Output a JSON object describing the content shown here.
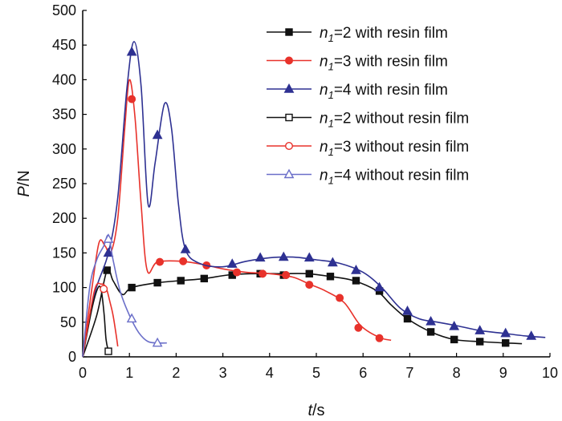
{
  "chart_data": {
    "type": "line",
    "xlabel": {
      "var": "t",
      "unit": "/s"
    },
    "ylabel": {
      "var": "P",
      "unit": "/N"
    },
    "xlim": [
      0,
      10
    ],
    "ylim": [
      0,
      500
    ],
    "xticks": [
      "0",
      "1",
      "2",
      "3",
      "4",
      "5",
      "6",
      "7",
      "8",
      "9",
      "10"
    ],
    "yticks": [
      "0",
      "50",
      "100",
      "150",
      "200",
      "250",
      "300",
      "350",
      "400",
      "450",
      "500"
    ],
    "grid": false,
    "legend_position": "top-right",
    "series": [
      {
        "name": "=2 with resin film",
        "subscript_label": {
          "var": "n",
          "sub": "1",
          "rest": "=2 with resin film"
        },
        "color": "#111111",
        "marker": "square",
        "filled": true,
        "points": [
          [
            0,
            0
          ],
          [
            0.3,
            60
          ],
          [
            0.52,
            125
          ],
          [
            0.65,
            110
          ],
          [
            0.85,
            90
          ],
          [
            1.05,
            100
          ],
          [
            1.6,
            107
          ],
          [
            2.1,
            110
          ],
          [
            2.6,
            113
          ],
          [
            3.1,
            118
          ],
          [
            3.6,
            120
          ],
          [
            4.2,
            120
          ],
          [
            4.8,
            120
          ],
          [
            5.3,
            116
          ],
          [
            5.8,
            110
          ],
          [
            6.3,
            95
          ],
          [
            6.6,
            75
          ],
          [
            6.95,
            55
          ],
          [
            7.45,
            36
          ],
          [
            7.95,
            25
          ],
          [
            8.5,
            22
          ],
          [
            9.05,
            20
          ],
          [
            9.4,
            19
          ]
        ],
        "markers": [
          [
            0.52,
            125
          ],
          [
            1.05,
            100
          ],
          [
            1.6,
            107
          ],
          [
            2.1,
            110
          ],
          [
            2.6,
            113
          ],
          [
            3.2,
            118
          ],
          [
            3.8,
            120
          ],
          [
            4.3,
            118
          ],
          [
            4.85,
            120
          ],
          [
            5.3,
            116
          ],
          [
            5.85,
            110
          ],
          [
            6.35,
            95
          ],
          [
            6.95,
            55
          ],
          [
            7.45,
            36
          ],
          [
            7.95,
            25
          ],
          [
            8.5,
            22
          ],
          [
            9.05,
            20
          ]
        ]
      },
      {
        "name": "=3 with resin film",
        "subscript_label": {
          "var": "n",
          "sub": "1",
          "rest": "=3 with resin film"
        },
        "color": "#e8322b",
        "marker": "circle",
        "filled": true,
        "points": [
          [
            0,
            0
          ],
          [
            0.2,
            100
          ],
          [
            0.35,
            165
          ],
          [
            0.48,
            160
          ],
          [
            0.6,
            150
          ],
          [
            0.75,
            200
          ],
          [
            0.9,
            330
          ],
          [
            1.0,
            400
          ],
          [
            1.12,
            345
          ],
          [
            1.25,
            220
          ],
          [
            1.38,
            125
          ],
          [
            1.6,
            137
          ],
          [
            2.1,
            138
          ],
          [
            2.6,
            133
          ],
          [
            3.0,
            127
          ],
          [
            3.5,
            122
          ],
          [
            4.0,
            120
          ],
          [
            4.5,
            115
          ],
          [
            4.85,
            105
          ],
          [
            5.2,
            95
          ],
          [
            5.6,
            78
          ],
          [
            5.95,
            45
          ],
          [
            6.35,
            28
          ],
          [
            6.6,
            24
          ]
        ],
        "markers": [
          [
            1.05,
            372
          ],
          [
            1.65,
            137
          ],
          [
            2.15,
            138
          ],
          [
            2.65,
            132
          ],
          [
            3.3,
            122
          ],
          [
            3.85,
            120
          ],
          [
            4.35,
            118
          ],
          [
            4.85,
            104
          ],
          [
            5.5,
            85
          ],
          [
            5.9,
            42
          ],
          [
            6.35,
            27
          ]
        ]
      },
      {
        "name": "=4 with resin film",
        "subscript_label": {
          "var": "n",
          "sub": "1",
          "rest": "=4 with resin film"
        },
        "color": "#2e3192",
        "marker": "triangle",
        "filled": true,
        "points": [
          [
            0,
            0
          ],
          [
            0.25,
            90
          ],
          [
            0.55,
            150
          ],
          [
            0.75,
            230
          ],
          [
            0.95,
            390
          ],
          [
            1.1,
            455
          ],
          [
            1.25,
            390
          ],
          [
            1.4,
            220
          ],
          [
            1.55,
            280
          ],
          [
            1.75,
            365
          ],
          [
            1.9,
            330
          ],
          [
            2.05,
            220
          ],
          [
            2.2,
            155
          ],
          [
            2.5,
            135
          ],
          [
            3.0,
            130
          ],
          [
            3.5,
            138
          ],
          [
            4.0,
            143
          ],
          [
            4.5,
            144
          ],
          [
            5.0,
            140
          ],
          [
            5.5,
            135
          ],
          [
            6.0,
            122
          ],
          [
            6.4,
            100
          ],
          [
            6.8,
            70
          ],
          [
            7.2,
            55
          ],
          [
            7.6,
            50
          ],
          [
            8.0,
            45
          ],
          [
            8.5,
            38
          ],
          [
            9.0,
            34
          ],
          [
            9.5,
            30
          ],
          [
            9.9,
            28
          ]
        ],
        "markers": [
          [
            0.55,
            150
          ],
          [
            1.05,
            440
          ],
          [
            1.6,
            320
          ],
          [
            2.2,
            155
          ],
          [
            3.2,
            134
          ],
          [
            3.8,
            143
          ],
          [
            4.3,
            144
          ],
          [
            4.85,
            143
          ],
          [
            5.35,
            136
          ],
          [
            5.85,
            125
          ],
          [
            6.35,
            100
          ],
          [
            6.95,
            66
          ],
          [
            7.45,
            51
          ],
          [
            7.95,
            44
          ],
          [
            8.5,
            38
          ],
          [
            9.05,
            34
          ],
          [
            9.6,
            30
          ]
        ]
      },
      {
        "name": "=2 without resin film",
        "subscript_label": {
          "var": "n",
          "sub": "1",
          "rest": "=2 without resin film"
        },
        "color": "#111111",
        "marker": "square",
        "filled": false,
        "points": [
          [
            0,
            0
          ],
          [
            0.2,
            70
          ],
          [
            0.33,
            100
          ],
          [
            0.4,
            95
          ],
          [
            0.46,
            60
          ],
          [
            0.5,
            25
          ],
          [
            0.55,
            8
          ]
        ],
        "markers": [
          [
            0.55,
            8
          ]
        ]
      },
      {
        "name": "=3 without resin film",
        "subscript_label": {
          "var": "n",
          "sub": "1",
          "rest": "=3 without resin film"
        },
        "color": "#e8322b",
        "marker": "circle",
        "filled": false,
        "points": [
          [
            0,
            0
          ],
          [
            0.25,
            95
          ],
          [
            0.4,
            105
          ],
          [
            0.5,
            100
          ],
          [
            0.58,
            80
          ],
          [
            0.65,
            60
          ],
          [
            0.72,
            30
          ],
          [
            0.75,
            15
          ]
        ],
        "markers": [
          [
            0.45,
            98
          ]
        ]
      },
      {
        "name": "=4 without resin film",
        "subscript_label": {
          "var": "n",
          "sub": "1",
          "rest": "=4 without resin film"
        },
        "color": "#6b6fc9",
        "marker": "triangle",
        "filled": false,
        "points": [
          [
            0,
            0
          ],
          [
            0.15,
            100
          ],
          [
            0.3,
            140
          ],
          [
            0.45,
            160
          ],
          [
            0.55,
            175
          ],
          [
            0.65,
            140
          ],
          [
            0.8,
            95
          ],
          [
            1.0,
            60
          ],
          [
            1.2,
            35
          ],
          [
            1.4,
            22
          ],
          [
            1.65,
            20
          ],
          [
            1.8,
            20
          ]
        ],
        "markers": [
          [
            0.55,
            170
          ],
          [
            1.05,
            55
          ],
          [
            1.6,
            20
          ]
        ]
      }
    ]
  }
}
